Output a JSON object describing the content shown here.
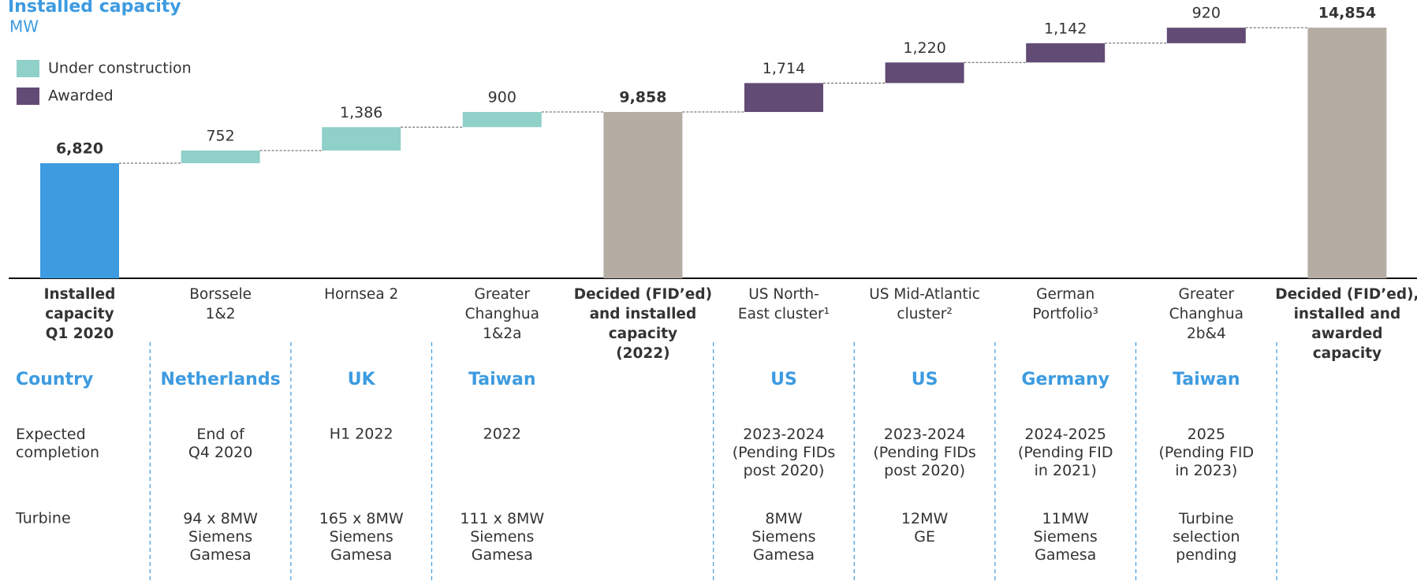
{
  "chart_data": {
    "type": "waterfall",
    "title": "Installed capacity",
    "subtitle": "MW",
    "categories": [
      "Installed\ncapacity\nQ1 2020",
      "Borssele\n1&2",
      "Hornsea 2",
      "Greater\nChanghua\n1&2a",
      "Decided (FID’ed)\nand installed\ncapacity\n(2022)",
      "US North-\nEast cluster¹",
      "US Mid-Atlantic\ncluster²",
      "German\nPortfolio³",
      "Greater\nChanghua\n2b&4",
      "Decided (FID’ed),\ninstalled and\nawarded\ncapacity"
    ],
    "values": [
      6820,
      752,
      1386,
      900,
      9858,
      1714,
      1220,
      1142,
      920,
      14854
    ],
    "value_labels": [
      "6,820",
      "752",
      "1,386",
      "900",
      "9,858",
      "1,714",
      "1,220",
      "1,142",
      "920",
      "14,854"
    ],
    "measure": [
      "absolute",
      "relative",
      "relative",
      "relative",
      "absolute",
      "relative",
      "relative",
      "relative",
      "relative",
      "absolute"
    ],
    "colors": [
      "#3d9be0",
      "#8fd0c9",
      "#8fd0c9",
      "#8fd0c9",
      "#b5aca3",
      "#624b74",
      "#624b74",
      "#624b74",
      "#624b74",
      "#b5aca3"
    ],
    "series": [
      {
        "name": "Under construction",
        "color": "#8fd0c9"
      },
      {
        "name": "Awarded",
        "color": "#624b74"
      }
    ],
    "ylim": [
      0,
      15000
    ]
  },
  "table": {
    "rows": [
      {
        "label": "Country",
        "cells": [
          "Netherlands",
          "UK",
          "Taiwan",
          null,
          "US",
          "US",
          "Germany",
          "Taiwan",
          null
        ]
      },
      {
        "label": "Expected\ncompletion",
        "cells": [
          "End of\nQ4 2020",
          "H1 2022",
          "2022",
          null,
          "2023-2024\n(Pending FIDs\npost 2020)",
          "2023-2024\n(Pending FIDs\npost 2020)",
          "2024-2025\n(Pending FID\nin 2021)",
          "2025\n(Pending FID\nin 2023)",
          null
        ]
      },
      {
        "label": "Turbine",
        "cells": [
          "94 x 8MW\nSiemens\nGamesa",
          "165 x 8MW\nSiemens\nGamesa",
          "111 x 8MW\nSiemens\nGamesa",
          null,
          "8MW\nSiemens\nGamesa",
          "12MW\nGE",
          "11MW\nSiemens\nGamesa",
          "Turbine\nselection\npending",
          null
        ]
      }
    ]
  }
}
